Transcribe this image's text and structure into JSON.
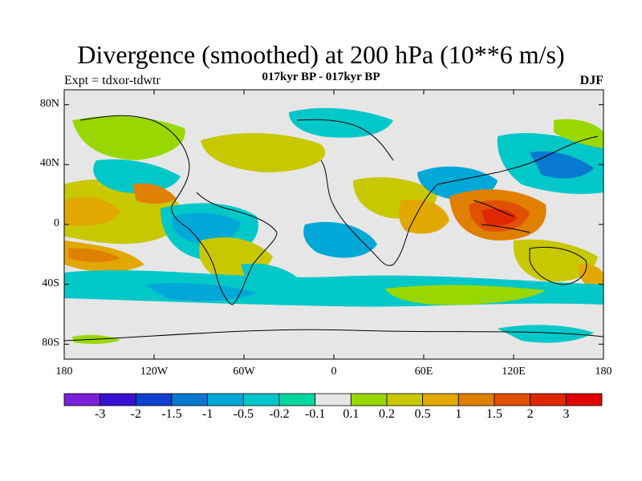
{
  "header": {
    "title": "Divergence (smoothed) at 200 hPa (10**6 m/s)",
    "subtitle": "017kyr BP - 017kyr BP",
    "experiment": "Expt = tdxor-tdwtr",
    "season": "DJF"
  },
  "map": {
    "projection": "cylindrical-equidistant",
    "lon_range": [
      -180,
      180
    ],
    "lat_range": [
      -90,
      90
    ],
    "lat_ticks": [
      {
        "value": 80,
        "label": "80N"
      },
      {
        "value": 40,
        "label": "40N"
      },
      {
        "value": 0,
        "label": "0"
      },
      {
        "value": -40,
        "label": "40S"
      },
      {
        "value": -80,
        "label": "80S"
      }
    ],
    "lon_ticks": [
      {
        "value": -180,
        "label": "180"
      },
      {
        "value": -120,
        "label": "120W"
      },
      {
        "value": -60,
        "label": "60W"
      },
      {
        "value": 0,
        "label": "0"
      },
      {
        "value": 60,
        "label": "60E"
      },
      {
        "value": 120,
        "label": "120E"
      },
      {
        "value": 180,
        "label": "180"
      }
    ],
    "background_color": "#e6e6e6",
    "coastline_color": "#000000"
  },
  "colorbar": {
    "colors": [
      "#7a20d8",
      "#3a10d0",
      "#1040d0",
      "#0878d0",
      "#00a8d8",
      "#00c8c8",
      "#00d8a0",
      "#e6e6e6",
      "#98d800",
      "#c8c800",
      "#e0a800",
      "#e08000",
      "#e05000",
      "#e02800",
      "#e00000"
    ],
    "labels": [
      "-3",
      "-2",
      "-1.5",
      "-1",
      "-0.5",
      "-0.2",
      "-0.1",
      "0.1",
      "0.2",
      "0.5",
      "1",
      "1.5",
      "2",
      "3"
    ]
  }
}
